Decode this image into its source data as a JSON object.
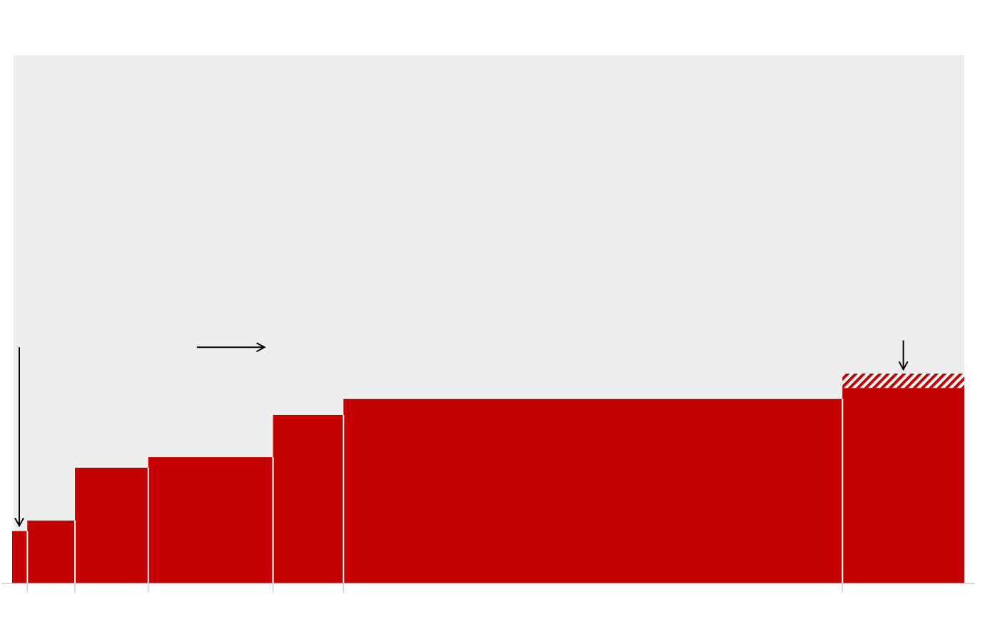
{
  "chart_data": {
    "type": "bar",
    "variant": "variable-width-step",
    "title": "",
    "xlabel": "",
    "ylabel": "",
    "x_range": [
      0,
      100
    ],
    "y_range": [
      0,
      100
    ],
    "grid": false,
    "legend": "none",
    "colors": {
      "plot_background": "#eeeeee",
      "bar": "#c50000",
      "hatch": "#c50000",
      "divider": "#ffffff",
      "axis": "#cccccc",
      "arrow": "#000000"
    },
    "series": [
      {
        "segments": [
          {
            "x0": 0.0,
            "x1": 1.6,
            "value": 9.9
          },
          {
            "x0": 1.6,
            "x1": 6.6,
            "value": 11.9
          },
          {
            "x0": 6.6,
            "x1": 14.3,
            "value": 21.9
          },
          {
            "x0": 14.3,
            "x1": 27.4,
            "value": 23.9
          },
          {
            "x0": 27.4,
            "x1": 34.8,
            "value": 31.9
          },
          {
            "x0": 34.8,
            "x1": 87.2,
            "value": 34.9
          },
          {
            "x0": 87.2,
            "x1": 100.0,
            "value": 37.0,
            "hatched_extra": 2.7
          }
        ]
      }
    ],
    "tick_positions": [
      1.6,
      6.6,
      14.3,
      27.4,
      34.8,
      87.2
    ],
    "annotations": [
      {
        "kind": "arrow-down",
        "x": 0.75,
        "y_from": 44.7,
        "y_to": 10.9
      },
      {
        "kind": "arrow-right",
        "x_from": 19.4,
        "x_to": 26.5,
        "y": 44.7
      },
      {
        "kind": "arrow-down",
        "x": 93.6,
        "y_from": 46.0,
        "y_to": 40.5
      }
    ]
  }
}
